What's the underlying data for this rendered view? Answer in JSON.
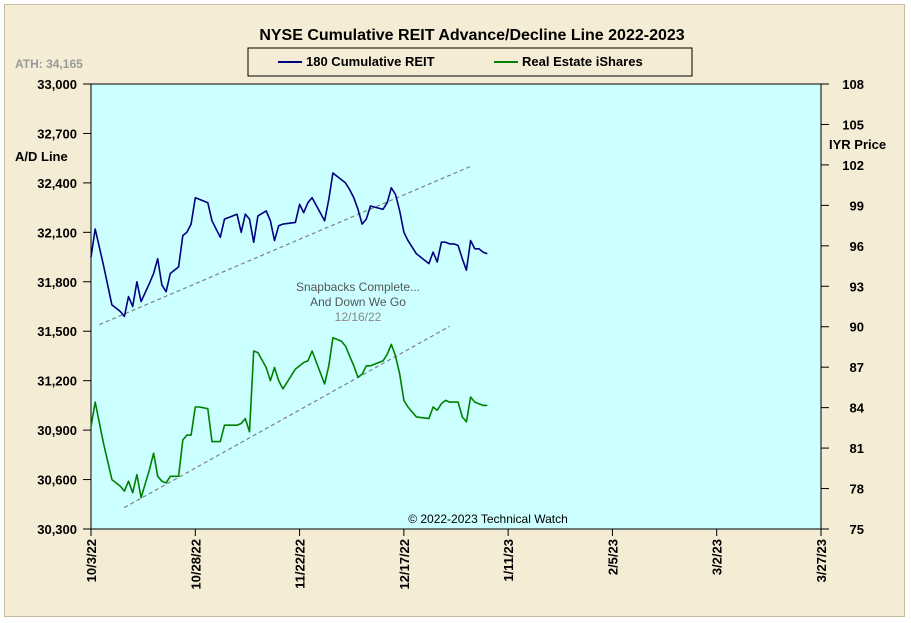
{
  "chart_data": {
    "type": "line",
    "title": "NYSE Cumulative  REIT Advance/Decline  Line 2022-2023",
    "ath_label": "ATH: 34,165",
    "ylabel_left": "A/D Line",
    "ylabel_right": "IYR Price",
    "copyright": "© 2022-2023  Technical  Watch",
    "annotation": {
      "lines": [
        "Snapbacks Complete...",
        "And Down We Go"
      ],
      "date": "12/16/22"
    },
    "x_ticks": [
      "10/3/22",
      "10/28/22",
      "11/22/22",
      "12/17/22",
      "1/11/23",
      "2/5/23",
      "3/2/23",
      "3/27/23"
    ],
    "x_range_days": [
      0,
      175
    ],
    "y_left": {
      "min": 30300,
      "max": 33000,
      "ticks": [
        "30,300",
        "30,600",
        "30,900",
        "31,200",
        "31,500",
        "31,800",
        "32,100",
        "32,400",
        "32,700",
        "33,000"
      ]
    },
    "y_right": {
      "min": 75,
      "max": 108,
      "ticks": [
        "75",
        "78",
        "81",
        "84",
        "87",
        "90",
        "93",
        "96",
        "99",
        "102",
        "105",
        "108"
      ]
    },
    "colors": {
      "plot_bg": "#ccffff",
      "frame_bg": "#f5ecd5",
      "reit": "#000080",
      "ishares": "#008000",
      "trend": "#808080"
    },
    "legend": [
      {
        "name": "180 Cumulative REIT",
        "color": "#000080"
      },
      {
        "name": "Real Estate iShares",
        "color": "#008000"
      }
    ],
    "series": [
      {
        "name": "180 Cumulative REIT",
        "axis": "left",
        "x": [
          0,
          1,
          3,
          5,
          7,
          8,
          9,
          10,
          11,
          12,
          14,
          15,
          16,
          17,
          18,
          19,
          21,
          22,
          23,
          24,
          25,
          26,
          28,
          29,
          31,
          32,
          35,
          36,
          37,
          38,
          39,
          40,
          42,
          43,
          44,
          45,
          46,
          49,
          50,
          51,
          52,
          53,
          56,
          57,
          58,
          60,
          61,
          62,
          63,
          64,
          65,
          66,
          67,
          70,
          71,
          72,
          73,
          74,
          75,
          76,
          77,
          78,
          81,
          82,
          83,
          84,
          85,
          86,
          87,
          88,
          89,
          90,
          91,
          92,
          93,
          94,
          95
        ],
        "values": [
          31950,
          32120,
          31900,
          31660,
          31620,
          31590,
          31710,
          31650,
          31800,
          31680,
          31790,
          31850,
          31940,
          31780,
          31740,
          31850,
          31890,
          32080,
          32100,
          32150,
          32310,
          32300,
          32280,
          32170,
          32070,
          32180,
          32210,
          32100,
          32210,
          32180,
          32040,
          32200,
          32230,
          32170,
          32050,
          32140,
          32150,
          32160,
          32270,
          32220,
          32280,
          32310,
          32170,
          32300,
          32460,
          32420,
          32400,
          32360,
          32310,
          32240,
          32150,
          32180,
          32260,
          32240,
          32280,
          32370,
          32330,
          32230,
          32100,
          32050,
          32010,
          31970,
          31910,
          31980,
          31920,
          32040,
          32040,
          32030,
          32030,
          32020,
          31940,
          31870,
          32050,
          32000,
          32000,
          31980,
          31970
        ],
        "color": "#000080"
      },
      {
        "name": "Real Estate iShares",
        "axis": "left",
        "x": [
          0,
          1,
          3,
          5,
          7,
          8,
          9,
          10,
          11,
          12,
          14,
          15,
          16,
          17,
          18,
          19,
          21,
          22,
          23,
          24,
          25,
          26,
          28,
          29,
          31,
          32,
          35,
          36,
          37,
          38,
          39,
          40,
          42,
          43,
          44,
          45,
          46,
          49,
          50,
          51,
          52,
          53,
          56,
          57,
          58,
          60,
          61,
          62,
          63,
          64,
          65,
          66,
          67,
          70,
          71,
          72,
          73,
          74,
          75,
          76,
          77,
          78,
          81,
          82,
          83,
          84,
          85,
          86,
          87,
          88,
          89,
          90,
          91,
          92,
          93,
          94,
          95
        ],
        "values": [
          30920,
          31070,
          30820,
          30600,
          30560,
          30530,
          30590,
          30520,
          30630,
          30490,
          30660,
          30760,
          30620,
          30590,
          30580,
          30620,
          30620,
          30840,
          30870,
          30870,
          31040,
          31040,
          31030,
          30830,
          30830,
          30930,
          30930,
          30940,
          30970,
          30890,
          31380,
          31370,
          31280,
          31200,
          31280,
          31200,
          31150,
          31270,
          31290,
          31310,
          31320,
          31380,
          31180,
          31290,
          31460,
          31440,
          31410,
          31350,
          31290,
          31220,
          31240,
          31290,
          31290,
          31320,
          31360,
          31420,
          31350,
          31240,
          31080,
          31040,
          31010,
          30980,
          30970,
          31040,
          31020,
          31060,
          31080,
          31070,
          31070,
          31070,
          30980,
          30950,
          31100,
          31070,
          31060,
          31050,
          31050
        ],
        "color": "#008000"
      }
    ],
    "trendlines": [
      {
        "x": [
          2,
          91
        ],
        "values": [
          31540,
          32500
        ]
      },
      {
        "x": [
          8,
          86
        ],
        "values": [
          30430,
          31530
        ]
      }
    ]
  }
}
